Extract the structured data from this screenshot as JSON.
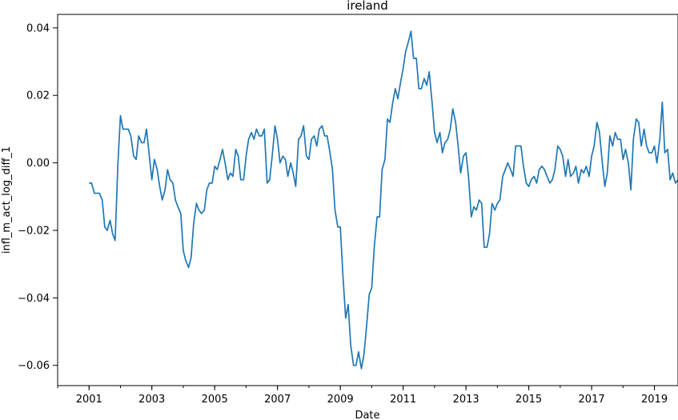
{
  "chart_data": {
    "type": "line",
    "title": "ireland",
    "xlabel": "Date",
    "ylabel": "infl_m_act_log_diff_1",
    "xlim": [
      2000.0,
      2019.75
    ],
    "ylim": [
      -0.066,
      0.044
    ],
    "x_ticks": [
      2001,
      2003,
      2005,
      2007,
      2009,
      2011,
      2013,
      2015,
      2017,
      2019
    ],
    "x_tick_labels": [
      "2001",
      "2003",
      "2005",
      "2007",
      "2009",
      "2011",
      "2013",
      "2015",
      "2017",
      "2019"
    ],
    "y_ticks": [
      0.04,
      0.02,
      0.0,
      -0.02,
      -0.04,
      -0.06
    ],
    "y_tick_labels": [
      "0.04",
      "0.02",
      "0.00",
      "−0.02",
      "−0.04",
      "−0.06"
    ],
    "grid": false,
    "series": [
      {
        "color": "#1f77b4",
        "points": [
          [
            2001.0,
            -0.006
          ],
          [
            2001.08,
            -0.006
          ],
          [
            2001.17,
            -0.009
          ],
          [
            2001.25,
            -0.009
          ],
          [
            2001.33,
            -0.009
          ],
          [
            2001.42,
            -0.011
          ],
          [
            2001.5,
            -0.019
          ],
          [
            2001.58,
            -0.02
          ],
          [
            2001.67,
            -0.017
          ],
          [
            2001.75,
            -0.021
          ],
          [
            2001.83,
            -0.023
          ],
          [
            2001.92,
            0.0
          ],
          [
            2002.0,
            0.014
          ],
          [
            2002.08,
            0.01
          ],
          [
            2002.17,
            0.01
          ],
          [
            2002.25,
            0.01
          ],
          [
            2002.33,
            0.008
          ],
          [
            2002.42,
            0.002
          ],
          [
            2002.5,
            0.001
          ],
          [
            2002.58,
            0.008
          ],
          [
            2002.67,
            0.006
          ],
          [
            2002.75,
            0.006
          ],
          [
            2002.83,
            0.01
          ],
          [
            2002.92,
            0.002
          ],
          [
            2003.0,
            -0.005
          ],
          [
            2003.08,
            0.001
          ],
          [
            2003.17,
            -0.002
          ],
          [
            2003.25,
            -0.007
          ],
          [
            2003.33,
            -0.011
          ],
          [
            2003.42,
            -0.008
          ],
          [
            2003.5,
            -0.002
          ],
          [
            2003.58,
            -0.005
          ],
          [
            2003.67,
            -0.006
          ],
          [
            2003.75,
            -0.011
          ],
          [
            2003.83,
            -0.013
          ],
          [
            2003.92,
            -0.015
          ],
          [
            2004.0,
            -0.026
          ],
          [
            2004.08,
            -0.029
          ],
          [
            2004.17,
            -0.031
          ],
          [
            2004.25,
            -0.028
          ],
          [
            2004.33,
            -0.018
          ],
          [
            2004.42,
            -0.012
          ],
          [
            2004.5,
            -0.014
          ],
          [
            2004.58,
            -0.015
          ],
          [
            2004.67,
            -0.014
          ],
          [
            2004.75,
            -0.008
          ],
          [
            2004.83,
            -0.006
          ],
          [
            2004.92,
            -0.006
          ],
          [
            2005.0,
            -0.001
          ],
          [
            2005.08,
            -0.002
          ],
          [
            2005.17,
            0.001
          ],
          [
            2005.25,
            0.004
          ],
          [
            2005.33,
            0.0
          ],
          [
            2005.42,
            -0.005
          ],
          [
            2005.5,
            -0.003
          ],
          [
            2005.58,
            -0.004
          ],
          [
            2005.67,
            0.004
          ],
          [
            2005.75,
            0.002
          ],
          [
            2005.83,
            -0.005
          ],
          [
            2005.92,
            -0.005
          ],
          [
            2006.0,
            0.002
          ],
          [
            2006.08,
            0.007
          ],
          [
            2006.17,
            0.009
          ],
          [
            2006.25,
            0.007
          ],
          [
            2006.33,
            0.01
          ],
          [
            2006.42,
            0.008
          ],
          [
            2006.5,
            0.008
          ],
          [
            2006.58,
            0.01
          ],
          [
            2006.67,
            -0.006
          ],
          [
            2006.75,
            -0.005
          ],
          [
            2006.83,
            0.002
          ],
          [
            2006.92,
            0.011
          ],
          [
            2007.0,
            0.007
          ],
          [
            2007.08,
            0.0
          ],
          [
            2007.17,
            0.002
          ],
          [
            2007.25,
            0.001
          ],
          [
            2007.33,
            -0.004
          ],
          [
            2007.42,
            0.0
          ],
          [
            2007.5,
            -0.003
          ],
          [
            2007.58,
            -0.007
          ],
          [
            2007.67,
            0.007
          ],
          [
            2007.75,
            0.008
          ],
          [
            2007.83,
            0.011
          ],
          [
            2007.92,
            0.002
          ],
          [
            2008.0,
            0.001
          ],
          [
            2008.08,
            0.007
          ],
          [
            2008.17,
            0.008
          ],
          [
            2008.25,
            0.005
          ],
          [
            2008.33,
            0.01
          ],
          [
            2008.42,
            0.011
          ],
          [
            2008.5,
            0.008
          ],
          [
            2008.58,
            0.008
          ],
          [
            2008.67,
            0.003
          ],
          [
            2008.75,
            -0.002
          ],
          [
            2008.83,
            -0.014
          ],
          [
            2008.92,
            -0.019
          ],
          [
            2009.0,
            -0.019
          ],
          [
            2009.08,
            -0.033
          ],
          [
            2009.17,
            -0.046
          ],
          [
            2009.25,
            -0.042
          ],
          [
            2009.33,
            -0.054
          ],
          [
            2009.42,
            -0.06
          ],
          [
            2009.5,
            -0.06
          ],
          [
            2009.58,
            -0.056
          ],
          [
            2009.67,
            -0.061
          ],
          [
            2009.75,
            -0.057
          ],
          [
            2009.83,
            -0.049
          ],
          [
            2009.92,
            -0.039
          ],
          [
            2010.0,
            -0.037
          ],
          [
            2010.08,
            -0.025
          ],
          [
            2010.17,
            -0.016
          ],
          [
            2010.25,
            -0.016
          ],
          [
            2010.33,
            -0.002
          ],
          [
            2010.42,
            0.001
          ],
          [
            2010.5,
            0.013
          ],
          [
            2010.58,
            0.012
          ],
          [
            2010.67,
            0.018
          ],
          [
            2010.75,
            0.022
          ],
          [
            2010.83,
            0.019
          ],
          [
            2010.92,
            0.024
          ],
          [
            2011.0,
            0.028
          ],
          [
            2011.08,
            0.033
          ],
          [
            2011.17,
            0.036
          ],
          [
            2011.25,
            0.039
          ],
          [
            2011.33,
            0.031
          ],
          [
            2011.42,
            0.031
          ],
          [
            2011.5,
            0.022
          ],
          [
            2011.58,
            0.022
          ],
          [
            2011.67,
            0.025
          ],
          [
            2011.75,
            0.023
          ],
          [
            2011.83,
            0.027
          ],
          [
            2011.92,
            0.018
          ],
          [
            2012.0,
            0.009
          ],
          [
            2012.08,
            0.006
          ],
          [
            2012.17,
            0.009
          ],
          [
            2012.25,
            0.003
          ],
          [
            2012.33,
            0.006
          ],
          [
            2012.42,
            0.007
          ],
          [
            2012.5,
            0.01
          ],
          [
            2012.58,
            0.016
          ],
          [
            2012.67,
            0.012
          ],
          [
            2012.75,
            0.005
          ],
          [
            2012.83,
            -0.003
          ],
          [
            2012.92,
            0.002
          ],
          [
            2013.0,
            0.003
          ],
          [
            2013.08,
            -0.004
          ],
          [
            2013.17,
            -0.016
          ],
          [
            2013.25,
            -0.013
          ],
          [
            2013.33,
            -0.014
          ],
          [
            2013.42,
            -0.011
          ],
          [
            2013.5,
            -0.012
          ],
          [
            2013.58,
            -0.025
          ],
          [
            2013.67,
            -0.025
          ],
          [
            2013.75,
            -0.021
          ],
          [
            2013.83,
            -0.012
          ],
          [
            2013.92,
            -0.014
          ],
          [
            2014.0,
            -0.012
          ],
          [
            2014.08,
            -0.011
          ],
          [
            2014.17,
            -0.004
          ],
          [
            2014.25,
            -0.002
          ],
          [
            2014.33,
            0.0
          ],
          [
            2014.42,
            -0.002
          ],
          [
            2014.5,
            -0.004
          ],
          [
            2014.58,
            0.005
          ],
          [
            2014.67,
            0.005
          ],
          [
            2014.75,
            0.005
          ],
          [
            2014.83,
            -0.001
          ],
          [
            2014.92,
            -0.006
          ],
          [
            2015.0,
            -0.007
          ],
          [
            2015.08,
            -0.005
          ],
          [
            2015.17,
            -0.004
          ],
          [
            2015.25,
            -0.006
          ],
          [
            2015.33,
            -0.002
          ],
          [
            2015.42,
            -0.001
          ],
          [
            2015.5,
            -0.002
          ],
          [
            2015.58,
            -0.004
          ],
          [
            2015.67,
            -0.006
          ],
          [
            2015.75,
            -0.005
          ],
          [
            2015.83,
            -0.002
          ],
          [
            2015.92,
            0.005
          ],
          [
            2016.0,
            0.004
          ],
          [
            2016.08,
            0.002
          ],
          [
            2016.17,
            -0.004
          ],
          [
            2016.25,
            0.001
          ],
          [
            2016.33,
            -0.004
          ],
          [
            2016.42,
            -0.003
          ],
          [
            2016.5,
            -0.001
          ],
          [
            2016.58,
            -0.006
          ],
          [
            2016.67,
            -0.002
          ],
          [
            2016.75,
            -0.003
          ],
          [
            2016.83,
            -0.001
          ],
          [
            2016.92,
            -0.004
          ],
          [
            2017.0,
            0.002
          ],
          [
            2017.08,
            0.005
          ],
          [
            2017.17,
            0.012
          ],
          [
            2017.25,
            0.009
          ],
          [
            2017.33,
            0.001
          ],
          [
            2017.42,
            -0.007
          ],
          [
            2017.5,
            -0.003
          ],
          [
            2017.58,
            0.008
          ],
          [
            2017.67,
            0.005
          ],
          [
            2017.75,
            0.009
          ],
          [
            2017.83,
            0.007
          ],
          [
            2017.92,
            0.007
          ],
          [
            2018.0,
            0.001
          ],
          [
            2018.08,
            0.004
          ],
          [
            2018.17,
            0.0
          ],
          [
            2018.25,
            -0.008
          ],
          [
            2018.33,
            0.007
          ],
          [
            2018.42,
            0.013
          ],
          [
            2018.5,
            0.012
          ],
          [
            2018.58,
            0.005
          ],
          [
            2018.67,
            0.01
          ],
          [
            2018.75,
            0.005
          ],
          [
            2018.83,
            0.003
          ],
          [
            2018.92,
            0.003
          ],
          [
            2019.0,
            0.005
          ],
          [
            2019.08,
            0.0
          ],
          [
            2019.17,
            0.007
          ],
          [
            2019.25,
            0.018
          ],
          [
            2019.33,
            0.003
          ],
          [
            2019.42,
            0.004
          ],
          [
            2019.5,
            -0.005
          ],
          [
            2019.58,
            -0.003
          ],
          [
            2019.67,
            -0.006
          ],
          [
            2019.75,
            -0.005
          ]
        ]
      }
    ]
  }
}
